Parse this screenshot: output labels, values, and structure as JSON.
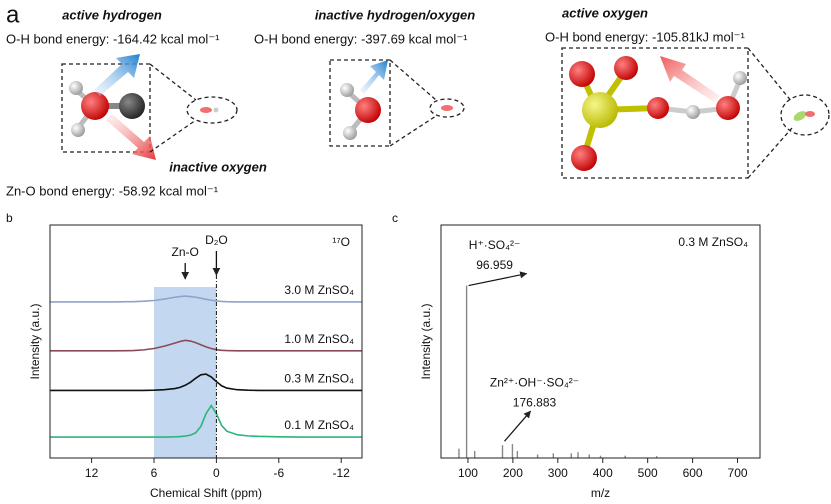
{
  "panel_a": {
    "label": "a",
    "active_hydrogen": {
      "title": "active hydrogen",
      "energy": "O-H bond energy:  -164.42 kcal mol⁻¹"
    },
    "inactive_oxygen": {
      "title": "inactive oxygen",
      "energy": "Zn-O bond energy:  -58.92 kcal mol⁻¹"
    },
    "inactive_hydrogen_oxygen": {
      "title": "inactive hydrogen/oxygen",
      "energy": "O-H bond energy:  -397.69 kcal mol⁻¹"
    },
    "active_oxygen": {
      "title": "active oxygen",
      "energy": "O-H bond energy:  -105.81kJ mol⁻¹"
    }
  },
  "chart_data": [
    {
      "type": "line",
      "panel_label": "b",
      "xlabel": "Chemical Shift (ppm)",
      "ylabel": "Intensity (a.u.)",
      "note": "¹⁷O",
      "xlim": [
        16,
        -14
      ],
      "xticks": [
        12,
        6,
        0,
        -6,
        -12
      ],
      "ylim": [
        0,
        10
      ],
      "shaded_range": [
        6,
        0
      ],
      "annotations": [
        {
          "text": "Zn-O",
          "x": 3
        },
        {
          "text": "D₂O",
          "x": 0
        }
      ],
      "x": [
        16,
        14,
        12,
        10,
        8,
        7,
        6,
        5,
        4,
        3.5,
        3,
        2.5,
        2,
        1.5,
        1,
        0.5,
        0,
        -0.5,
        -1,
        -2,
        -3,
        -4,
        -6,
        -8,
        -10,
        -12,
        -14
      ],
      "series": [
        {
          "name": "3.0 M ZnSO₄",
          "color": "#8fa3c8",
          "values": [
            6.7,
            6.7,
            6.7,
            6.7,
            6.71,
            6.73,
            6.76,
            6.82,
            6.9,
            6.93,
            6.95,
            6.93,
            6.9,
            6.86,
            6.81,
            6.77,
            6.74,
            6.72,
            6.71,
            6.7,
            6.7,
            6.7,
            6.7,
            6.7,
            6.7,
            6.7,
            6.7
          ]
        },
        {
          "name": "1.0 M ZnSO₄",
          "color": "#8b4a57",
          "values": [
            4.6,
            4.6,
            4.6,
            4.6,
            4.61,
            4.64,
            4.7,
            4.8,
            4.93,
            5.0,
            5.05,
            5.02,
            4.95,
            4.86,
            4.77,
            4.7,
            4.65,
            4.62,
            4.61,
            4.6,
            4.6,
            4.6,
            4.6,
            4.6,
            4.6,
            4.6,
            4.6
          ]
        },
        {
          "name": "0.3 M ZnSO₄",
          "color": "#111111",
          "values": [
            2.9,
            2.9,
            2.9,
            2.9,
            2.9,
            2.9,
            2.91,
            2.93,
            2.98,
            3.03,
            3.12,
            3.25,
            3.42,
            3.57,
            3.6,
            3.48,
            3.28,
            3.1,
            3.0,
            2.93,
            2.91,
            2.9,
            2.9,
            2.9,
            2.9,
            2.9,
            2.9
          ]
        },
        {
          "name": "0.1 M ZnSO₄",
          "color": "#2cb57a",
          "values": [
            0.9,
            0.9,
            0.9,
            0.9,
            0.9,
            0.9,
            0.9,
            0.9,
            0.91,
            0.92,
            0.94,
            0.98,
            1.08,
            1.35,
            1.9,
            2.25,
            1.9,
            1.4,
            1.15,
            1.0,
            0.95,
            0.93,
            0.91,
            0.9,
            0.9,
            0.9,
            0.9
          ]
        }
      ]
    },
    {
      "type": "stem",
      "panel_label": "c",
      "xlabel": "m/z",
      "ylabel": "Intensity (a.u.)",
      "note": "0.3 M ZnSO₄",
      "color": "#888888",
      "xlim": [
        40,
        750
      ],
      "xticks": [
        100,
        200,
        300,
        400,
        500,
        600,
        700
      ],
      "ylim": [
        0,
        100
      ],
      "annotations": [
        {
          "text": "H⁺·SO₄²⁻",
          "x": 96.959
        },
        {
          "text": "Zn²⁺·OH⁻·SO₄²⁻",
          "x": 176.883
        }
      ],
      "x": [
        80,
        96.959,
        115,
        176.883,
        199,
        210,
        255,
        290,
        330,
        345,
        370,
        395,
        450,
        520
      ],
      "values": [
        4,
        74,
        3,
        5.5,
        6,
        3,
        1.5,
        2,
        2,
        2.5,
        1.5,
        1,
        1,
        0.8
      ]
    }
  ]
}
